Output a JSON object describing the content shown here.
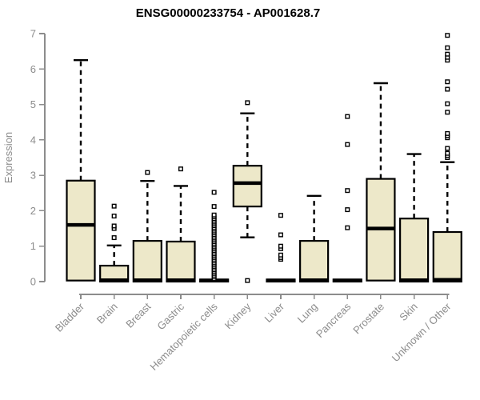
{
  "chart_data": {
    "type": "boxplot",
    "title": "ENSG00000233754 - AP001628.7",
    "ylabel": "Expression",
    "xlabel": "",
    "ylim": [
      0,
      7
    ],
    "yticks": [
      0,
      1,
      2,
      3,
      4,
      5,
      6,
      7
    ],
    "grid": false,
    "legend": "none",
    "colors": {
      "box_fill": "#EDE8C9",
      "box_border": "#000000",
      "median": "#000000",
      "whisker": "#000000",
      "outlier": "#000000",
      "axis": "#8c8c8c",
      "tick_text": "#8c8c8c",
      "title_text": "#000000",
      "background": "#ffffff"
    },
    "categories": [
      "Bladder",
      "Brain",
      "Breast",
      "Gastric",
      "Hematopoietic cells",
      "Kidney",
      "Liver",
      "Lung",
      "Pancreas",
      "Prostate",
      "Skin",
      "Unknown / Other"
    ],
    "series": [
      {
        "category": "Bladder",
        "low": 0,
        "q1": 0.03,
        "median": 1.6,
        "q3": 2.85,
        "high": 6.25,
        "outliers": []
      },
      {
        "category": "Brain",
        "low": 0,
        "q1": 0,
        "median": 0.04,
        "q3": 0.45,
        "high": 1.02,
        "outliers": [
          1.24,
          1.5,
          1.57,
          1.85,
          2.13
        ]
      },
      {
        "category": "Breast",
        "low": 0,
        "q1": 0,
        "median": 0.04,
        "q3": 1.15,
        "high": 2.84,
        "outliers": [
          3.08
        ]
      },
      {
        "category": "Gastric",
        "low": 0,
        "q1": 0,
        "median": 0.04,
        "q3": 1.13,
        "high": 2.7,
        "outliers": [
          3.18
        ]
      },
      {
        "category": "Hematopoietic cells",
        "low": 0,
        "q1": 0,
        "median": 0.03,
        "q3": 0.06,
        "high": 0.06,
        "outliers": [
          0.08,
          0.13,
          0.18,
          0.23,
          0.28,
          0.33,
          0.38,
          0.43,
          0.48,
          0.53,
          0.58,
          0.63,
          0.68,
          0.73,
          0.78,
          0.83,
          0.88,
          0.93,
          0.98,
          1.03,
          1.08,
          1.13,
          1.18,
          1.23,
          1.28,
          1.33,
          1.38,
          1.43,
          1.48,
          1.53,
          1.58,
          1.63,
          1.68,
          1.73,
          1.78,
          1.83,
          1.88,
          2.12,
          2.52
        ]
      },
      {
        "category": "Kidney",
        "low": 1.25,
        "q1": 2.12,
        "median": 2.78,
        "q3": 3.27,
        "high": 4.75,
        "outliers": [
          5.05,
          0.03
        ]
      },
      {
        "category": "Liver",
        "low": 0,
        "q1": 0,
        "median": 0.03,
        "q3": 0.06,
        "high": 0.06,
        "outliers": [
          0.63,
          0.68,
          0.75,
          0.93,
          1.0,
          1.32,
          1.87
        ]
      },
      {
        "category": "Lung",
        "low": 0,
        "q1": 0,
        "median": 0.04,
        "q3": 1.15,
        "high": 2.42,
        "outliers": []
      },
      {
        "category": "Pancreas",
        "low": 0,
        "q1": 0,
        "median": 0.03,
        "q3": 0.06,
        "high": 0.06,
        "outliers": [
          1.52,
          2.03,
          2.57,
          3.87,
          4.66
        ]
      },
      {
        "category": "Prostate",
        "low": 0,
        "q1": 0.03,
        "median": 1.5,
        "q3": 2.9,
        "high": 5.6,
        "outliers": []
      },
      {
        "category": "Skin",
        "low": 0,
        "q1": 0,
        "median": 0.04,
        "q3": 1.78,
        "high": 3.6,
        "outliers": []
      },
      {
        "category": "Unknown / Other",
        "low": 0,
        "q1": 0,
        "median": 0.05,
        "q3": 1.4,
        "high": 3.37,
        "outliers": [
          3.5,
          3.56,
          3.62,
          3.76,
          4.06,
          4.12,
          4.18,
          4.78,
          5.02,
          5.43,
          5.64,
          6.25,
          6.33,
          6.42,
          6.6,
          6.95
        ]
      }
    ]
  }
}
